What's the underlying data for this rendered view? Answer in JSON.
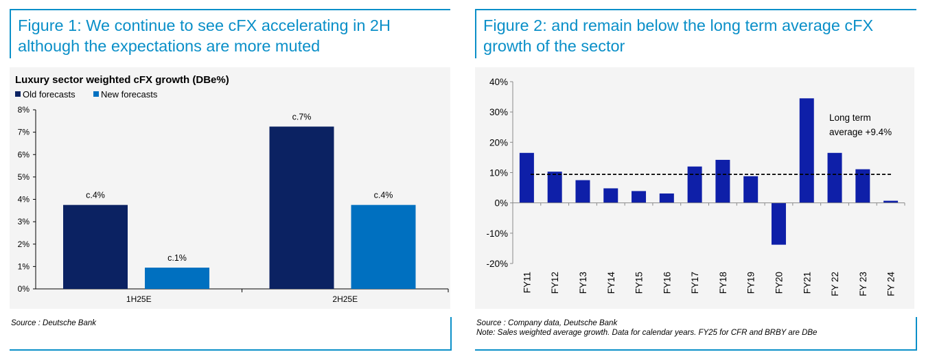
{
  "figure1": {
    "title_line1": "Figure 1: We continue to see cFX accelerating in 2H",
    "title_line2": "although the expectations are more muted",
    "source": "Source : Deutsche Bank"
  },
  "figure2": {
    "title_line1": "Figure 2: and remain below the long term average cFX",
    "title_line2": "growth of the sector",
    "source": "Source : Company data, Deutsche Bank",
    "note": "Note: Sales weighted average growth. Data for calendar years. FY25 for CFR and BRBY are DBe"
  },
  "colors": {
    "accent": "#0a8fc8",
    "old_forecasts": "#0b2262",
    "new_forecasts": "#0070c0",
    "bars2": "#0e1fa8"
  },
  "chart_data": [
    {
      "type": "bar",
      "title": "Luxury sector weighted cFX growth (DBe%)",
      "categories": [
        "1H25E",
        "2H25E"
      ],
      "series": [
        {
          "name": "Old forecasts",
          "values": [
            3.75,
            7.25
          ],
          "labels": [
            "c.4%",
            "c.7%"
          ]
        },
        {
          "name": "New forecasts",
          "values": [
            0.95,
            3.75
          ],
          "labels": [
            "c.1%",
            "c.4%"
          ]
        }
      ],
      "yticks": [
        "0%",
        "1%",
        "2%",
        "3%",
        "4%",
        "5%",
        "6%",
        "7%",
        "8%"
      ],
      "ylim": [
        0,
        8
      ],
      "legend": "top-left"
    },
    {
      "type": "bar",
      "title": "",
      "categories": [
        "FY11",
        "FY12",
        "FY13",
        "FY14",
        "FY15",
        "FY16",
        "FY17",
        "FY18",
        "FY19",
        "FY20",
        "FY21",
        "FY 22",
        "FY 23",
        "FY 24"
      ],
      "values": [
        16.5,
        10.3,
        7.5,
        4.8,
        3.9,
        3.1,
        12.0,
        14.2,
        8.8,
        -13.8,
        34.5,
        16.5,
        11.1,
        0.7
      ],
      "yticks": [
        "-20%",
        "-10%",
        "0%",
        "10%",
        "20%",
        "30%",
        "40%"
      ],
      "ylim": [
        -20,
        40
      ],
      "average_line": 9.4,
      "average_label_line1": "Long term",
      "average_label_line2": "average +9.4%"
    }
  ]
}
